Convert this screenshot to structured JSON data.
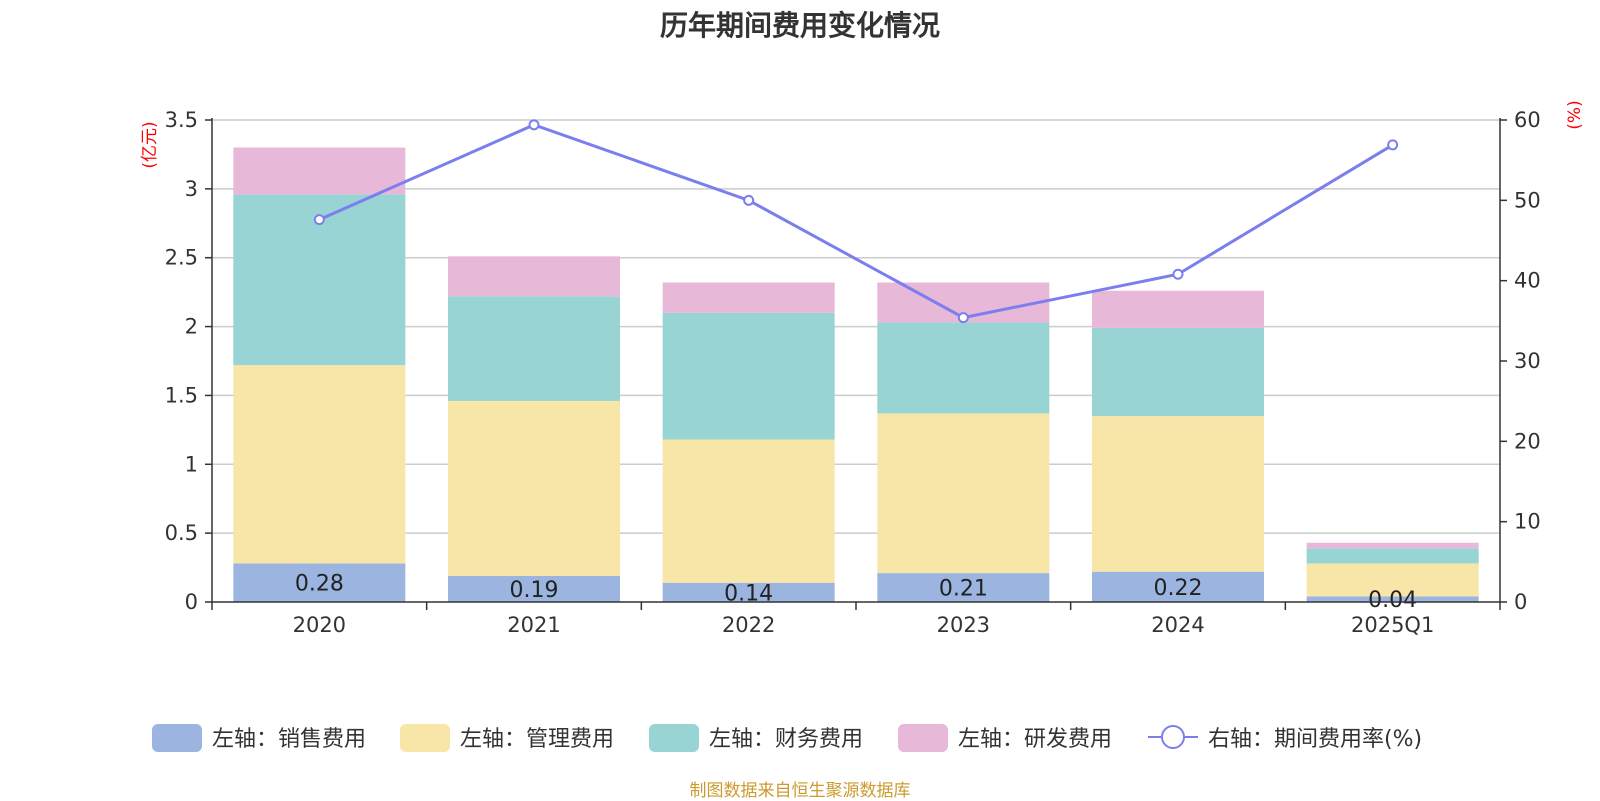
{
  "chart_data": {
    "type": "bar",
    "title": "历年期间费用变化情况",
    "categories": [
      "2020",
      "2021",
      "2022",
      "2023",
      "2024",
      "2025Q1"
    ],
    "left_axis": {
      "unit": "(亿元)",
      "ylim": [
        0,
        3.5
      ],
      "ticks": [
        "0",
        "0.5",
        "1",
        "1.5",
        "2",
        "2.5",
        "3",
        "3.5"
      ]
    },
    "right_axis": {
      "unit": "(%)",
      "ylim": [
        0,
        60
      ],
      "ticks": [
        "0",
        "10",
        "20",
        "30",
        "40",
        "50",
        "60"
      ]
    },
    "stacked": true,
    "series": [
      {
        "name": "左轴：销售费用",
        "color": "#9bb5e0",
        "values": [
          0.28,
          0.19,
          0.14,
          0.21,
          0.22,
          0.04
        ],
        "labels": [
          "0.28",
          "0.19",
          "0.14",
          "0.21",
          "0.22",
          "0.04"
        ]
      },
      {
        "name": "左轴：管理费用",
        "color": "#f8e6a8",
        "values": [
          1.44,
          1.27,
          1.04,
          1.16,
          1.13,
          0.24
        ]
      },
      {
        "name": "左轴：财务费用",
        "color": "#98d4d4",
        "values": [
          1.24,
          0.76,
          0.92,
          0.66,
          0.64,
          0.11
        ]
      },
      {
        "name": "左轴：研发费用",
        "color": "#e8b8d8",
        "values": [
          0.34,
          0.29,
          0.22,
          0.29,
          0.27,
          0.04
        ]
      }
    ],
    "line_series": {
      "name": "右轴：期间费用率(%)",
      "color": "#7b7fee",
      "values": [
        47.6,
        59.4,
        50.0,
        35.4,
        40.8,
        56.9
      ]
    },
    "grid": true,
    "legend": "bottom"
  },
  "footer": "制图数据来自恒生聚源数据库"
}
